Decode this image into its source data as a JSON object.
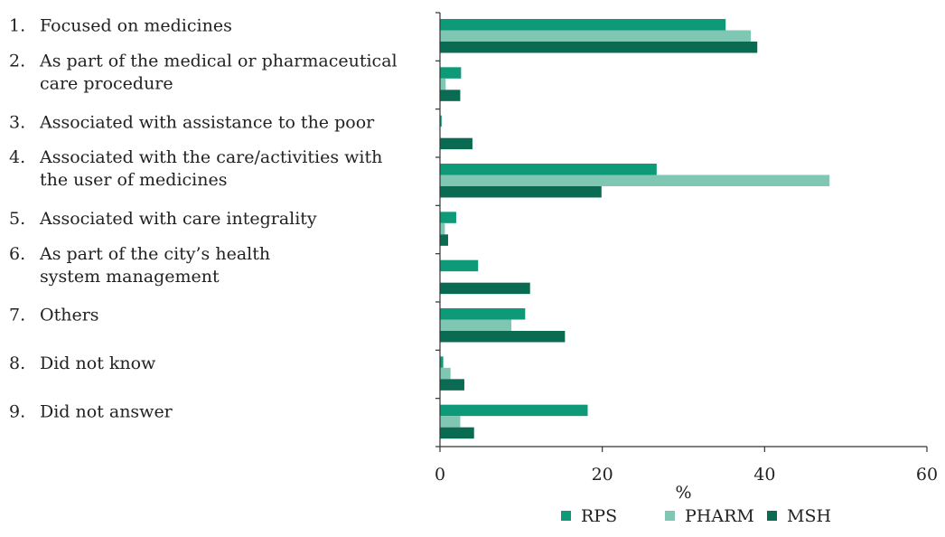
{
  "chart_data": {
    "type": "bar",
    "orientation": "horizontal",
    "title": "",
    "xlabel": "%",
    "ylabel": "",
    "xlim": [
      0,
      60
    ],
    "xticks": [
      0,
      20,
      40,
      60
    ],
    "grid": false,
    "legend_position": "bottom",
    "categories": [
      [
        "1.",
        "Focused on medicines"
      ],
      [
        "2.",
        "As part of the medical or pharmaceutical",
        "care procedure"
      ],
      [
        "3.",
        "Associated with assistance to the poor"
      ],
      [
        "4.",
        "Associated with the care/activities with",
        "the user of medicines"
      ],
      [
        "5.",
        "Associated with care integrality"
      ],
      [
        "6.",
        "As part of the city’s health",
        "system management"
      ],
      [
        "7.",
        "Others"
      ],
      [
        "8.",
        "Did not know"
      ],
      [
        "9.",
        "Did not answer"
      ]
    ],
    "series": [
      {
        "name": "RPS",
        "color": "#0e9a78",
        "values": [
          35.2,
          2.6,
          0.2,
          26.7,
          2.0,
          4.7,
          10.5,
          0.4,
          18.2
        ]
      },
      {
        "name": "PHARM",
        "color": "#7fc6b3",
        "values": [
          38.3,
          0.7,
          0.0,
          48.0,
          0.6,
          0.0,
          8.8,
          1.3,
          2.5
        ]
      },
      {
        "name": "MSH",
        "color": "#0a6b52",
        "values": [
          39.1,
          2.5,
          4.0,
          19.9,
          1.0,
          11.1,
          15.4,
          3.0,
          4.2
        ]
      }
    ]
  }
}
